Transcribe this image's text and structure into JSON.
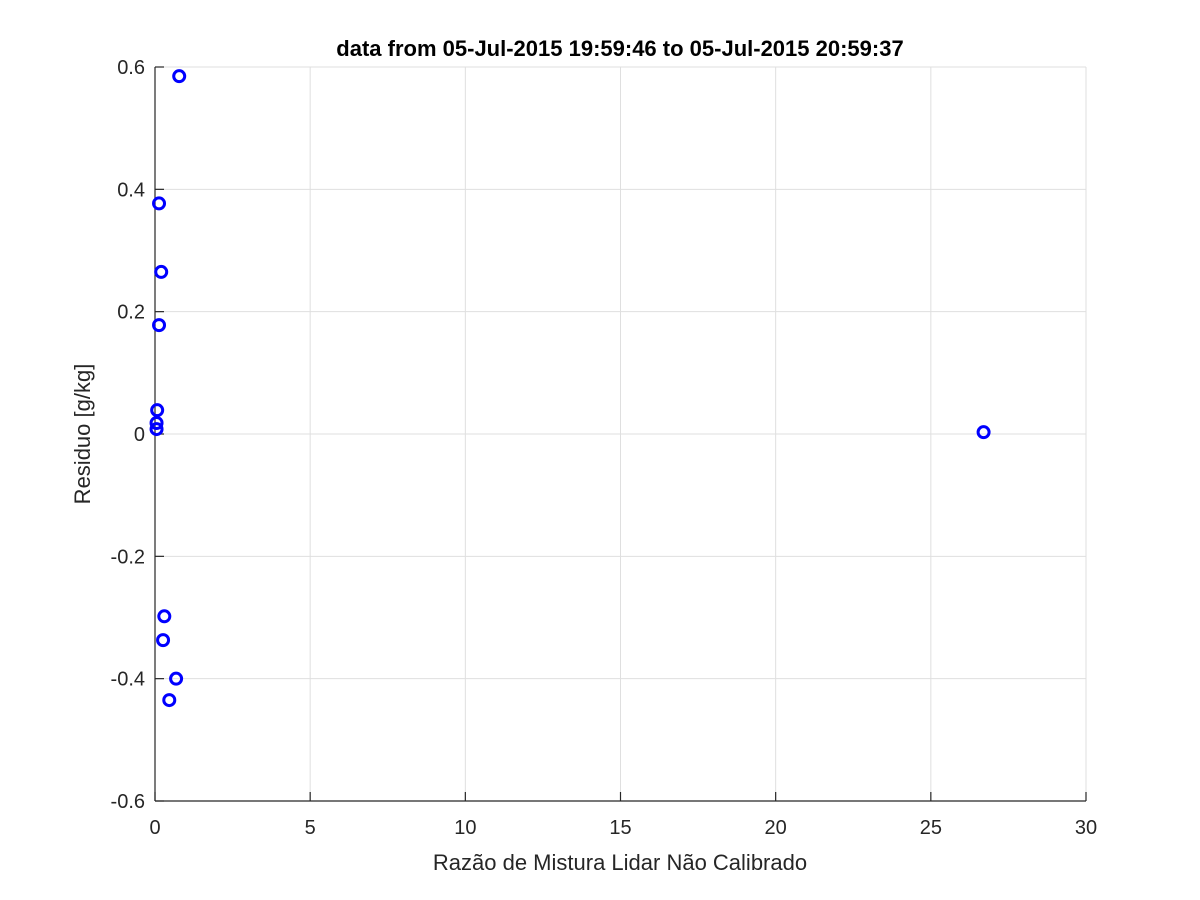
{
  "chart_data": {
    "type": "scatter",
    "title": "data from 05-Jul-2015 19:59:46 to 05-Jul-2015 20:59:37",
    "xlabel": "Razão de Mistura Lidar Não Calibrado",
    "ylabel": "Residuo [g/kg]",
    "xlim": [
      0,
      30
    ],
    "ylim": [
      -0.6,
      0.6
    ],
    "xticks": [
      0,
      5,
      10,
      15,
      20,
      25,
      30
    ],
    "xtick_labels": [
      "0",
      "5",
      "10",
      "15",
      "20",
      "25",
      "30"
    ],
    "yticks": [
      -0.6,
      -0.4,
      -0.2,
      0,
      0.2,
      0.4,
      0.6
    ],
    "ytick_labels": [
      "-0.6",
      "-0.4",
      "-0.2",
      "0",
      "0.2",
      "0.4",
      "0.6"
    ],
    "grid": true,
    "marker": "circle-open",
    "color": "#0000ff",
    "points": [
      {
        "x": 0.78,
        "y": 0.585
      },
      {
        "x": 0.13,
        "y": 0.377
      },
      {
        "x": 0.2,
        "y": 0.265
      },
      {
        "x": 0.13,
        "y": 0.178
      },
      {
        "x": 0.07,
        "y": 0.039
      },
      {
        "x": 0.05,
        "y": 0.018
      },
      {
        "x": 0.05,
        "y": 0.008
      },
      {
        "x": 26.7,
        "y": 0.003
      },
      {
        "x": 0.3,
        "y": -0.298
      },
      {
        "x": 0.26,
        "y": -0.337
      },
      {
        "x": 0.68,
        "y": -0.4
      },
      {
        "x": 0.46,
        "y": -0.435
      }
    ]
  }
}
